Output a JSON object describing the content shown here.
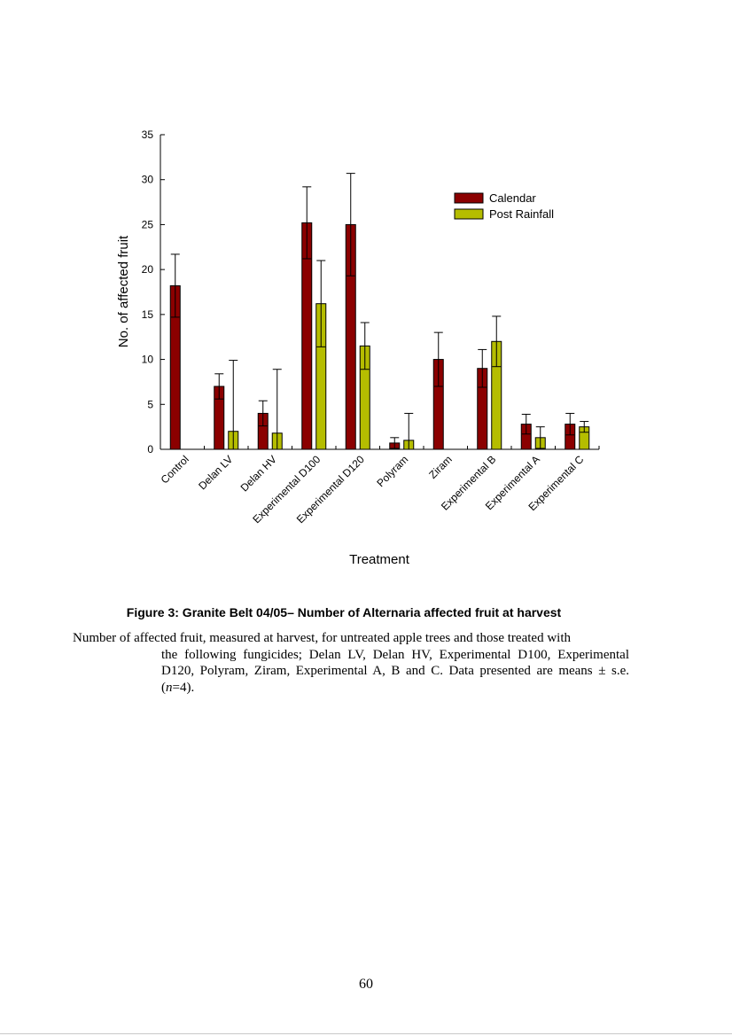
{
  "chart_data": {
    "type": "bar",
    "title": "",
    "xlabel": "Treatment",
    "ylabel": "No. of affected fruit",
    "ylim": [
      0,
      35
    ],
    "yticks": [
      0,
      5,
      10,
      15,
      20,
      25,
      30,
      35
    ],
    "grid": false,
    "legend_position": "top-right",
    "categories": [
      "Control",
      "Delan LV",
      "Delan HV",
      "Experimental D100",
      "Experimental D120",
      "Polyram",
      "Ziram",
      "Experimental B",
      "Experimental A",
      "Experimental C"
    ],
    "series": [
      {
        "name": "Calendar",
        "color": "#8b0000",
        "values": [
          18.2,
          7.0,
          4.0,
          25.2,
          25.0,
          0.7,
          10.0,
          9.0,
          2.8,
          2.8
        ],
        "errors": [
          3.5,
          1.4,
          1.4,
          4.0,
          5.7,
          0.6,
          3.0,
          2.1,
          1.1,
          1.2
        ]
      },
      {
        "name": "Post Rainfall",
        "color": "#b5bd00",
        "values": [
          null,
          2.0,
          1.8,
          16.2,
          11.5,
          1.0,
          null,
          12.0,
          1.3,
          2.5
        ],
        "errors": [
          null,
          7.9,
          7.1,
          4.8,
          2.6,
          3.0,
          null,
          2.8,
          1.2,
          0.6
        ]
      }
    ]
  },
  "figure": {
    "title": "Figure 3:  Granite Belt 04/05– Number of Alternaria affected fruit at harvest",
    "caption_line1": "Number of affected fruit, measured at harvest, for untreated apple trees and those treated with",
    "caption_rest_a": "the following fungicides; Delan LV, Delan HV, Experimental D100, Experimental D120, Polyram, Ziram, Experimental A, B and C.  Data presented are means ± s.e. (",
    "caption_n": "n",
    "caption_rest_b": "=4)."
  },
  "page": {
    "number": "60"
  }
}
